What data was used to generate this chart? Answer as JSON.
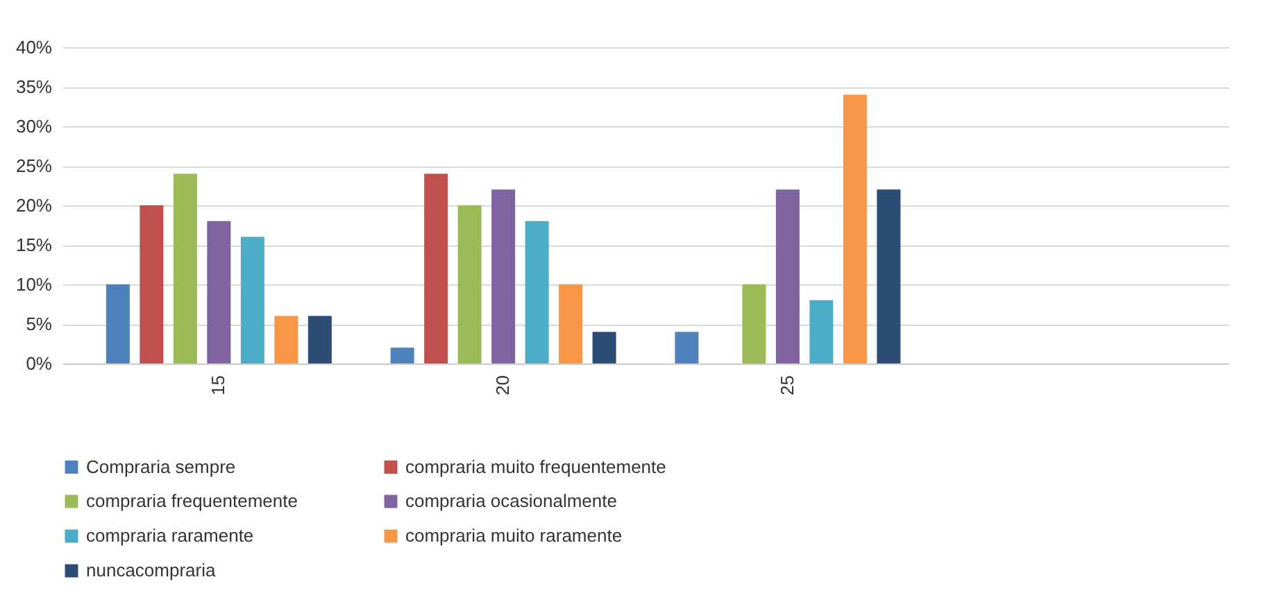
{
  "chart_data": {
    "type": "bar",
    "categories": [
      "15",
      "20",
      "25",
      null
    ],
    "series": [
      {
        "name": "Compraria sempre",
        "color": "#4f81bd",
        "values": [
          10,
          2,
          4,
          null
        ]
      },
      {
        "name": "compraria muito frequentemente",
        "color": "#c0504d",
        "values": [
          20,
          24,
          0,
          null
        ]
      },
      {
        "name": "compraria frequentemente",
        "color": "#9bbb59",
        "values": [
          24,
          20,
          10,
          null
        ]
      },
      {
        "name": "compraria ocasionalmente",
        "color": "#8064a2",
        "values": [
          18,
          22,
          22,
          null
        ]
      },
      {
        "name": "compraria raramente",
        "color": "#4bacc6",
        "values": [
          16,
          18,
          8,
          null
        ]
      },
      {
        "name": "compraria muito raramente",
        "color": "#f79646",
        "values": [
          6,
          10,
          34,
          null
        ]
      },
      {
        "name": "nuncacompraria",
        "color": "#2c4d75",
        "values": [
          6,
          4,
          22,
          null
        ]
      }
    ],
    "ylim": [
      0,
      40
    ],
    "yticks": [
      {
        "value": 0,
        "label": "0%"
      },
      {
        "value": 5,
        "label": "5%"
      },
      {
        "value": 10,
        "label": "10%"
      },
      {
        "value": 15,
        "label": "15%"
      },
      {
        "value": 20,
        "label": "20%"
      },
      {
        "value": 25,
        "label": "25%"
      },
      {
        "value": 30,
        "label": "30%"
      },
      {
        "value": 35,
        "label": "35%"
      },
      {
        "value": 40,
        "label": "40%"
      }
    ],
    "grid": "y",
    "legend": "bottom"
  }
}
